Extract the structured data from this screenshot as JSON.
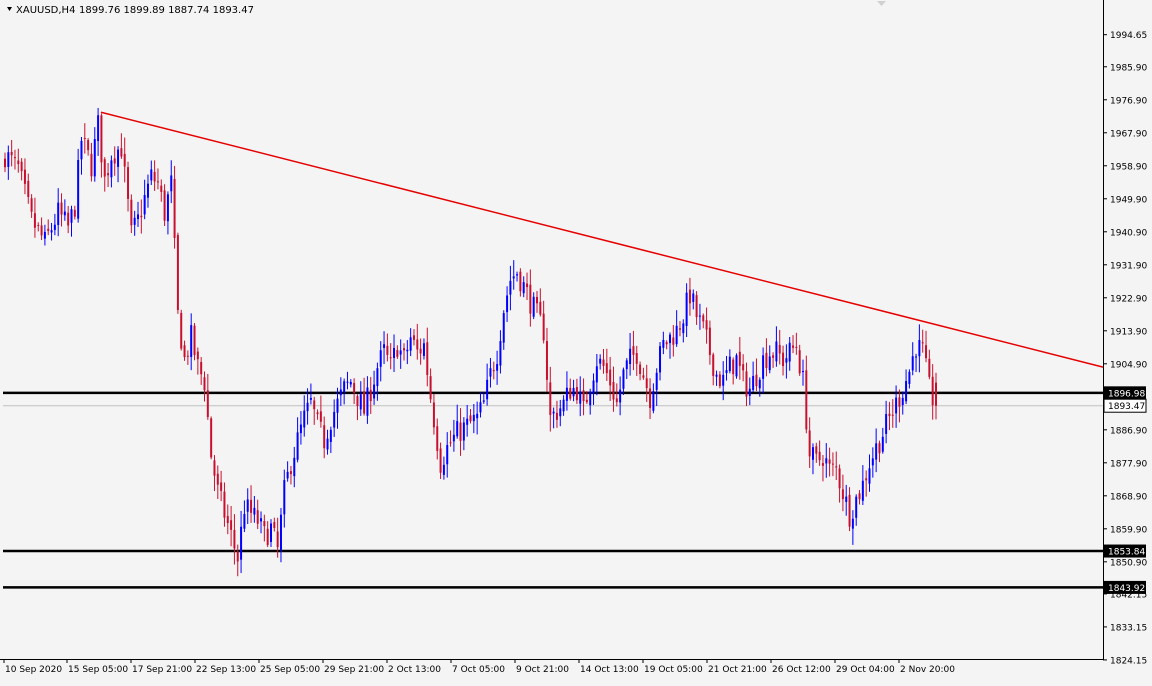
{
  "chart_data": {
    "type": "candlestick",
    "symbol_label": "XAUUSD,H4",
    "ohlc_header": "1899.76 1899.89 1887.74 1893.47",
    "last_price": 1893.47,
    "ylim": [
      1822,
      2002
    ],
    "y_ticks": [
      "1994.65",
      "1985.90",
      "1976.90",
      "1967.90",
      "1958.90",
      "1949.90",
      "1940.90",
      "1931.90",
      "1922.90",
      "1913.90",
      "1904.90",
      "1886.90",
      "1877.90",
      "1868.90",
      "1859.90",
      "1850.90",
      "1842.15",
      "1833.15",
      "1824.15"
    ],
    "x_labels": [
      "10 Sep 2020",
      "15 Sep 05:00",
      "17 Sep 21:00",
      "22 Sep 13:00",
      "25 Sep 05:00",
      "29 Sep 21:00",
      "2 Oct 13:00",
      "7 Oct 05:00",
      "9 Oct 21:00",
      "14 Oct 13:00",
      "19 Oct 05:00",
      "21 Oct 21:00",
      "26 Oct 12:00",
      "29 Oct 04:00",
      "2 Nov 20:00"
    ],
    "horizontal_levels": [
      {
        "value": 1896.98,
        "label": "1896.98",
        "color": "#000000"
      },
      {
        "value": 1853.84,
        "label": "1853.84",
        "color": "#000000"
      },
      {
        "value": 1843.92,
        "label": "1843.92",
        "color": "#000000"
      }
    ],
    "price_line": {
      "value": 1893.47,
      "label": "1893.47",
      "color": "#c0c0c0"
    },
    "trendline": {
      "color": "#e60000",
      "start_value": 1973.5,
      "end_value": 1904.0
    },
    "colors": {
      "bull": "#0000ff",
      "bear": "#c8102e",
      "background": "#f4f4f4",
      "axis": "#000000"
    },
    "series": {
      "anchors": [
        [
          0,
          1962
        ],
        [
          4,
          1958
        ],
        [
          8,
          1944
        ],
        [
          12,
          1938
        ],
        [
          16,
          1946
        ],
        [
          19,
          1942
        ],
        [
          21,
          1948
        ],
        [
          23,
          1966
        ],
        [
          26,
          1959
        ],
        [
          28,
          1970
        ],
        [
          30,
          1955
        ],
        [
          32,
          1962
        ],
        [
          35,
          1964
        ],
        [
          38,
          1940
        ],
        [
          40,
          1944
        ],
        [
          42,
          1950
        ],
        [
          44,
          1956
        ],
        [
          46,
          1954
        ],
        [
          48,
          1946
        ],
        [
          50,
          1954
        ],
        [
          52,
          1918
        ],
        [
          54,
          1906
        ],
        [
          56,
          1912
        ],
        [
          58,
          1904
        ],
        [
          60,
          1900
        ],
        [
          62,
          1880
        ],
        [
          64,
          1870
        ],
        [
          66,
          1864
        ],
        [
          68,
          1858
        ],
        [
          70,
          1852
        ],
        [
          72,
          1866
        ],
        [
          74,
          1864
        ],
        [
          76,
          1862
        ],
        [
          78,
          1858
        ],
        [
          80,
          1860
        ],
        [
          82,
          1854
        ],
        [
          84,
          1870
        ],
        [
          86,
          1878
        ],
        [
          88,
          1884
        ],
        [
          90,
          1890
        ],
        [
          92,
          1894
        ],
        [
          94,
          1888
        ],
        [
          96,
          1884
        ],
        [
          98,
          1890
        ],
        [
          100,
          1894
        ],
        [
          102,
          1898
        ],
        [
          104,
          1900
        ],
        [
          106,
          1896
        ],
        [
          108,
          1892
        ],
        [
          110,
          1898
        ],
        [
          112,
          1904
        ],
        [
          114,
          1908
        ],
        [
          116,
          1904
        ],
        [
          118,
          1910
        ],
        [
          120,
          1906
        ],
        [
          122,
          1912
        ],
        [
          124,
          1908
        ],
        [
          126,
          1910
        ],
        [
          128,
          1896
        ],
        [
          130,
          1884
        ],
        [
          131,
          1878
        ],
        [
          133,
          1882
        ],
        [
          136,
          1886
        ],
        [
          139,
          1888
        ],
        [
          142,
          1890
        ],
        [
          144,
          1894
        ],
        [
          146,
          1902
        ],
        [
          148,
          1908
        ],
        [
          150,
          1920
        ],
        [
          152,
          1928
        ],
        [
          154,
          1930
        ],
        [
          156,
          1926
        ],
        [
          158,
          1922
        ],
        [
          160,
          1918
        ],
        [
          162,
          1914
        ],
        [
          164,
          1890
        ],
        [
          166,
          1892
        ],
        [
          168,
          1894
        ],
        [
          170,
          1898
        ],
        [
          172,
          1898
        ],
        [
          174,
          1892
        ],
        [
          176,
          1900
        ],
        [
          178,
          1906
        ],
        [
          180,
          1904
        ],
        [
          182,
          1900
        ],
        [
          184,
          1894
        ],
        [
          186,
          1902
        ],
        [
          188,
          1906
        ],
        [
          190,
          1908
        ],
        [
          192,
          1902
        ],
        [
          194,
          1896
        ],
        [
          196,
          1904
        ],
        [
          198,
          1910
        ],
        [
          200,
          1912
        ],
        [
          202,
          1914
        ],
        [
          204,
          1918
        ],
        [
          206,
          1924
        ],
        [
          208,
          1918
        ],
        [
          210,
          1914
        ],
        [
          212,
          1908
        ],
        [
          214,
          1902
        ],
        [
          216,
          1900
        ],
        [
          218,
          1904
        ],
        [
          220,
          1906
        ],
        [
          222,
          1900
        ],
        [
          224,
          1898
        ],
        [
          226,
          1902
        ],
        [
          228,
          1906
        ],
        [
          230,
          1908
        ],
        [
          232,
          1908
        ],
        [
          234,
          1906
        ],
        [
          236,
          1908
        ],
        [
          238,
          1910
        ],
        [
          240,
          1900
        ],
        [
          242,
          1880
        ],
        [
          244,
          1878
        ],
        [
          246,
          1880
        ],
        [
          248,
          1876
        ],
        [
          250,
          1876
        ],
        [
          252,
          1870
        ],
        [
          254,
          1864
        ],
        [
          256,
          1868
        ],
        [
          258,
          1872
        ],
        [
          260,
          1878
        ],
        [
          262,
          1882
        ],
        [
          264,
          1886
        ],
        [
          266,
          1890
        ],
        [
          268,
          1894
        ],
        [
          270,
          1898
        ],
        [
          272,
          1903
        ],
        [
          274,
          1910
        ],
        [
          276,
          1908
        ],
        [
          278,
          1898
        ],
        [
          280,
          1893
        ]
      ]
    }
  }
}
